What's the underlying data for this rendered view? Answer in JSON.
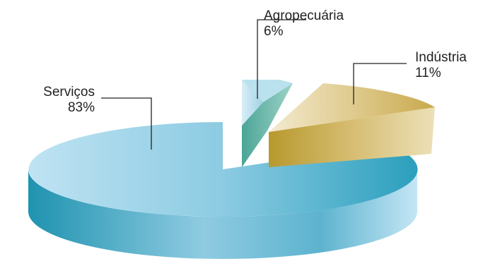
{
  "chart_data": {
    "type": "pie",
    "title": "",
    "slices": [
      {
        "label": "Serviços",
        "value": 83,
        "value_label": "83%",
        "color": "#7fc1dc"
      },
      {
        "label": "Agropecuária",
        "value": 6,
        "value_label": "6%",
        "color": "#86c6b9"
      },
      {
        "label": "Indústria",
        "value": 11,
        "value_label": "11%",
        "color": "#cdb46a"
      }
    ],
    "style": "3d-exploded"
  }
}
